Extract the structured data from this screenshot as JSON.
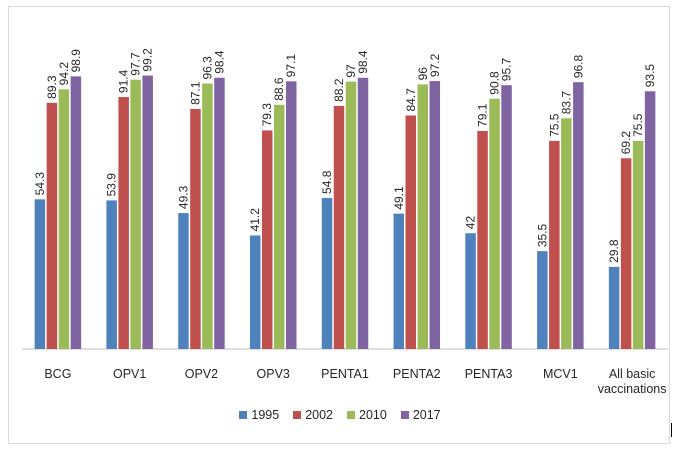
{
  "chart_data": {
    "type": "bar",
    "title": "",
    "xlabel": "",
    "ylabel": "",
    "ylim": [
      0,
      115
    ],
    "grid": false,
    "legend_position": "bottom",
    "categories": [
      "BCG",
      "OPV1",
      "OPV2",
      "OPV3",
      "PENTA1",
      "PENTA2",
      "PENTA3",
      "MCV1",
      "All basic vaccinations"
    ],
    "series": [
      {
        "name": "1995",
        "color": "#4f81bd",
        "values": [
          54.3,
          53.9,
          49.3,
          41.2,
          54.8,
          49.1,
          42,
          35.5,
          29.8
        ]
      },
      {
        "name": "2002",
        "color": "#c0504d",
        "values": [
          89.3,
          91.4,
          87.1,
          79.3,
          88.2,
          84.7,
          79.1,
          75.5,
          69.2
        ]
      },
      {
        "name": "2010",
        "color": "#9bbb59",
        "values": [
          94.2,
          97.7,
          96.3,
          88.6,
          97,
          96,
          90.8,
          83.7,
          75.5
        ]
      },
      {
        "name": "2017",
        "color": "#8064a2",
        "values": [
          98.9,
          99.2,
          98.4,
          97.1,
          98.4,
          97.2,
          95.7,
          96.8,
          93.5
        ]
      }
    ]
  }
}
